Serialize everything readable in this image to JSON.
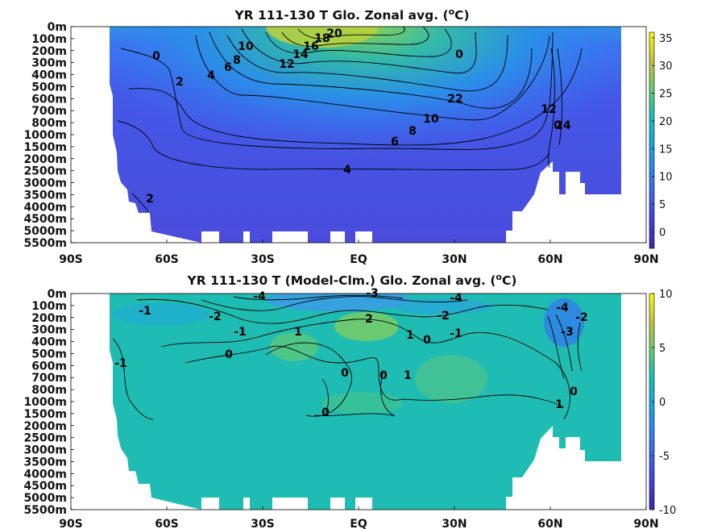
{
  "chart_data": [
    {
      "type": "heatmap",
      "title": "YR 111-130 T Glo. Zonal avg. (",
      "title_sup": "o",
      "title_end": "C)",
      "x_ticks": [
        "90S",
        "60S",
        "30S",
        "EQ",
        "30N",
        "60N",
        "90N"
      ],
      "y_ticks": [
        "0m",
        "100m",
        "200m",
        "300m",
        "400m",
        "500m",
        "600m",
        "700m",
        "800m",
        "1000m",
        "1500m",
        "2000m",
        "2500m",
        "3000m",
        "3500m",
        "4000m",
        "4500m",
        "5000m",
        "5500m"
      ],
      "colorbar": {
        "ticks": [
          "35",
          "30",
          "25",
          "20",
          "15",
          "10",
          "5",
          "0"
        ],
        "range": [
          -3,
          36
        ],
        "colormap": "parula"
      },
      "contour_labels": [
        "0",
        "2",
        "4",
        "6",
        "8",
        "10",
        "12",
        "14",
        "16",
        "18",
        "20",
        "22",
        "10",
        "8",
        "6",
        "4",
        "2",
        "0",
        "12",
        "24",
        "0"
      ],
      "grid": false
    },
    {
      "type": "heatmap",
      "title": "YR 111-130 T (Model-Clm.) Glo. Zonal avg. (",
      "title_sup": "o",
      "title_end": "C)",
      "x_ticks": [
        "90S",
        "60S",
        "30S",
        "EQ",
        "30N",
        "60N",
        "90N"
      ],
      "y_ticks": [
        "0m",
        "100m",
        "200m",
        "300m",
        "400m",
        "500m",
        "600m",
        "700m",
        "800m",
        "1000m",
        "1500m",
        "2000m",
        "2500m",
        "3000m",
        "3500m",
        "4000m",
        "4500m",
        "5000m",
        "5500m"
      ],
      "colorbar": {
        "ticks": [
          "10",
          "5",
          "0",
          "-5",
          "-10"
        ],
        "range": [
          -10,
          10
        ],
        "colormap": "parula"
      },
      "contour_labels": [
        "-1",
        "-4",
        "-3",
        "-4",
        "-2",
        "-2",
        "-1",
        "1",
        "2",
        "1",
        "0",
        "-1",
        "-1",
        "0",
        "0",
        "0",
        "1",
        "0",
        "-4",
        "-3",
        "-2",
        "0",
        "1"
      ],
      "grid": false
    }
  ]
}
